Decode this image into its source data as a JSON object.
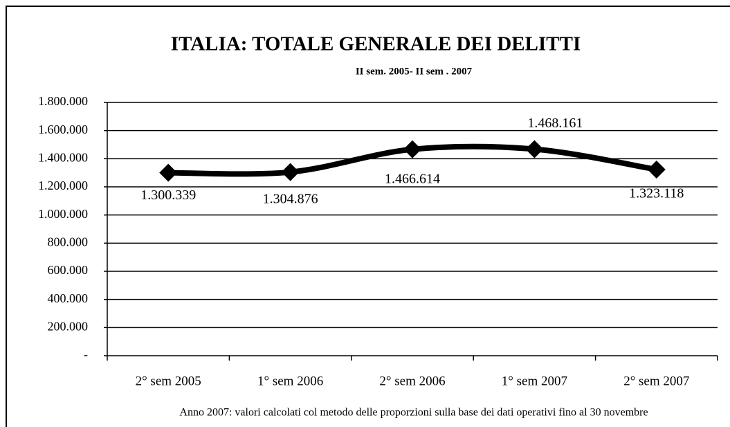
{
  "chart_data": {
    "type": "line",
    "title": "ITALIA: TOTALE GENERALE DEI DELITTI",
    "subtitle": "II sem. 2005- II sem . 2007",
    "categories": [
      "2° sem 2005",
      "1° sem 2006",
      "2° sem 2006",
      "1° sem 2007",
      "2° sem 2007"
    ],
    "values": [
      1300339,
      1304876,
      1466614,
      1468161,
      1323118
    ],
    "value_labels": [
      "1.300.339",
      "1.304.876",
      "1.466.614",
      "1.468.161",
      "1.323.118"
    ],
    "color": "#000000",
    "smooth": true,
    "ylim": [
      0,
      1800000
    ],
    "yticks": [
      {
        "value": 0,
        "label": "-"
      },
      {
        "value": 200000,
        "label": "200.000"
      },
      {
        "value": 400000,
        "label": "400.000"
      },
      {
        "value": 600000,
        "label": "600.000"
      },
      {
        "value": 800000,
        "label": "800.000"
      },
      {
        "value": 1000000,
        "label": "1.000.000"
      },
      {
        "value": 1200000,
        "label": "1.200.000"
      },
      {
        "value": 1400000,
        "label": "1.400.000"
      },
      {
        "value": 1600000,
        "label": "1.600.000"
      },
      {
        "value": 1800000,
        "label": "1.800.000"
      }
    ],
    "grid": true,
    "note": "Anno 2007: valori calcolati col metodo delle proporzioni sulla base dei dati operativi fino al 30 novembre"
  }
}
